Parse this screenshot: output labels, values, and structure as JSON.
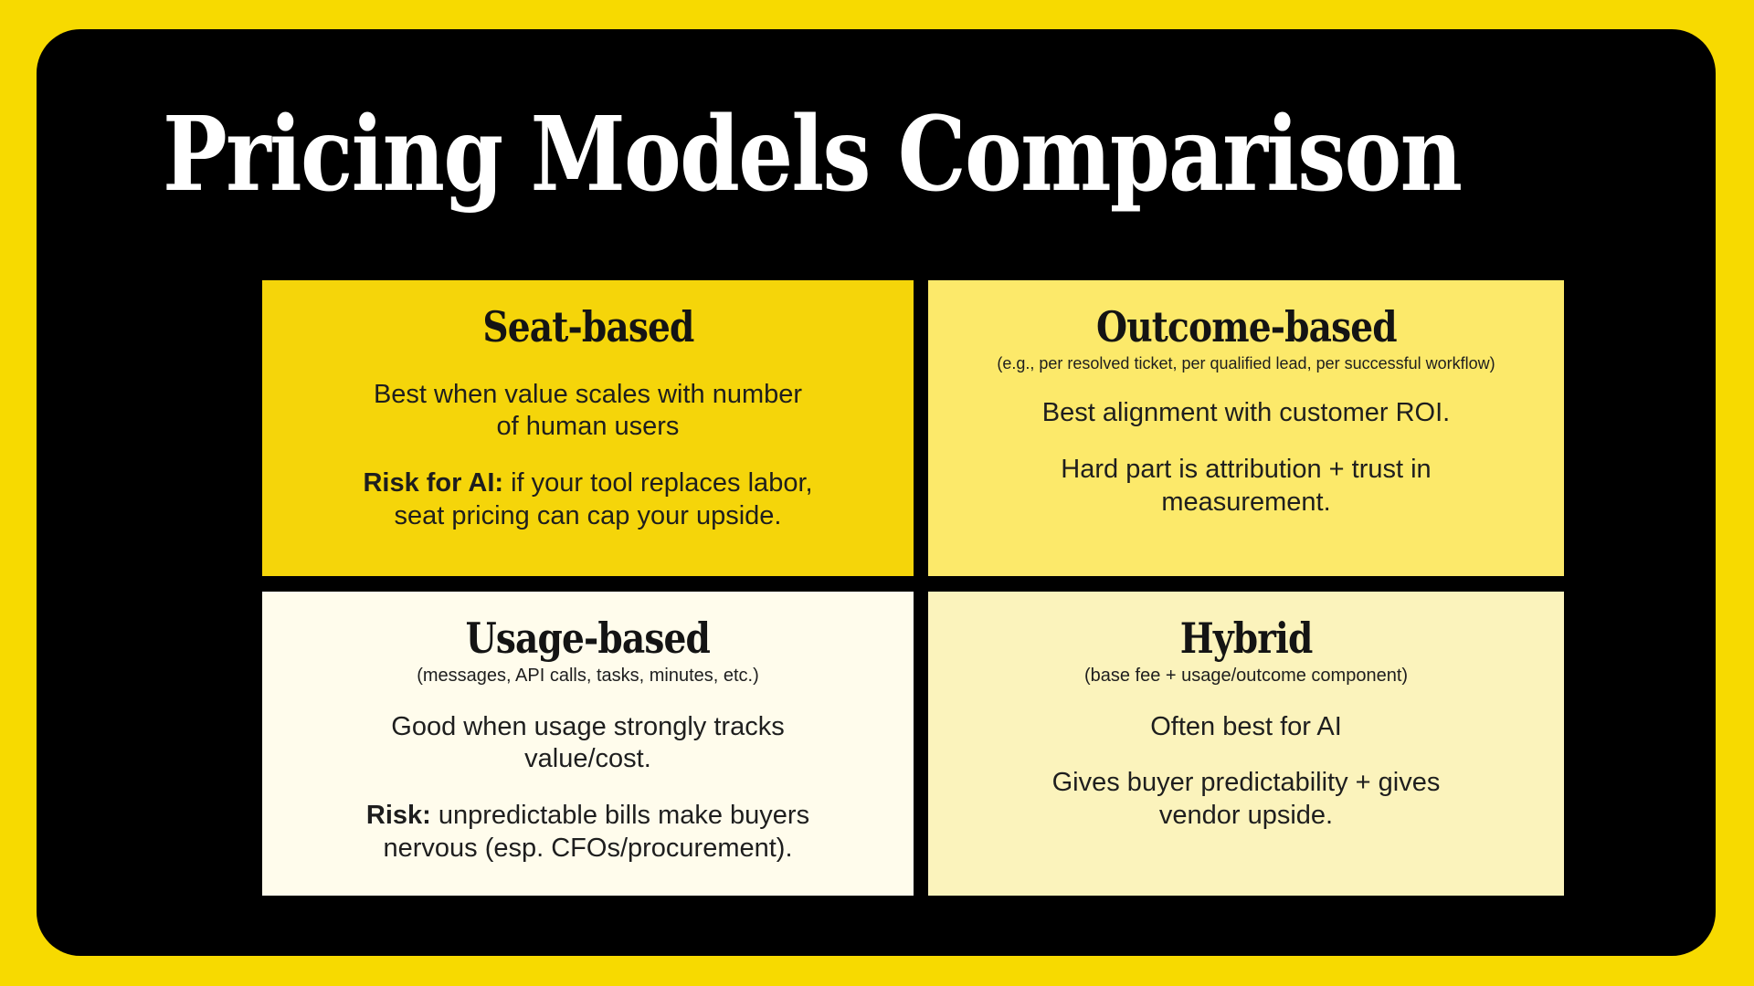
{
  "slide": {
    "title": "Pricing Models Comparison"
  },
  "colors": {
    "frame_yellow": "#F7DA00",
    "panel_black": "#000000",
    "title_text": "#FFFFFF",
    "body_text": "#1E1E1E",
    "card_seat_bg": "#F5D50A",
    "card_outcome_bg": "#FCE96A",
    "card_usage_bg": "#FFFCEC",
    "card_hybrid_bg": "#FBF3BC"
  },
  "cards": [
    {
      "id": "seat-based",
      "title": "Seat-based",
      "subtitle": "",
      "bg": "#F5D50A",
      "paragraphs": [
        {
          "bold": "",
          "text": "Best when value scales with number\nof human users"
        },
        {
          "bold": "Risk for AI:",
          "text": " if your tool replaces labor,\nseat pricing can cap your upside."
        }
      ]
    },
    {
      "id": "outcome-based",
      "title": "Outcome-based",
      "subtitle": "(e.g., per resolved ticket, per qualified lead, per successful workflow)",
      "bg": "#FCE96A",
      "paragraphs": [
        {
          "bold": "",
          "text": "Best alignment with customer ROI."
        },
        {
          "bold": "",
          "text": "Hard part is attribution + trust in\nmeasurement."
        }
      ]
    },
    {
      "id": "usage-based",
      "title": "Usage-based",
      "subtitle": "(messages, API calls, tasks, minutes, etc.)",
      "bg": "#FFFCEC",
      "paragraphs": [
        {
          "bold": "",
          "text": "Good when usage strongly tracks\nvalue/cost."
        },
        {
          "bold": "Risk:",
          "text": " unpredictable bills make buyers\nnervous (esp. CFOs/procurement)."
        }
      ]
    },
    {
      "id": "hybrid",
      "title": "Hybrid",
      "subtitle": "(base fee + usage/outcome component)",
      "bg": "#FBF3BC",
      "paragraphs": [
        {
          "bold": "",
          "text": "Often best for AI"
        },
        {
          "bold": "",
          "text": "Gives buyer predictability + gives\nvendor upside."
        }
      ]
    }
  ]
}
